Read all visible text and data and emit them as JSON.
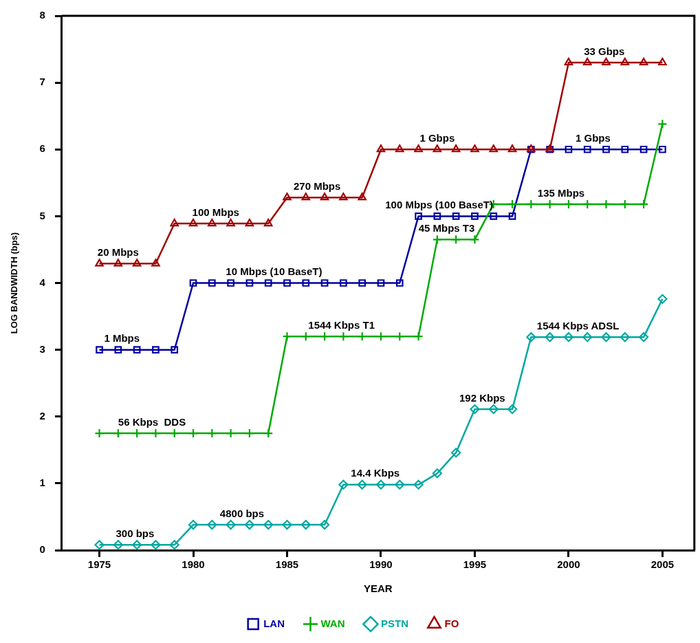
{
  "chart_data": {
    "type": "line",
    "xlabel": "YEAR",
    "ylabel": "LOG BANDWIDTH (bps)",
    "x": [
      1975,
      1976,
      1977,
      1978,
      1979,
      1980,
      1981,
      1982,
      1983,
      1984,
      1985,
      1986,
      1987,
      1988,
      1989,
      1990,
      1991,
      1992,
      1993,
      1994,
      1995,
      1996,
      1997,
      1998,
      1999,
      2000,
      2001,
      2002,
      2003,
      2004,
      2005
    ],
    "xlim": [
      1973,
      2006.7
    ],
    "xticks": [
      1975,
      1980,
      1985,
      1990,
      1995,
      2000,
      2005
    ],
    "ylim": [
      0,
      8
    ],
    "yticks": [
      0,
      1,
      2,
      3,
      4,
      5,
      6,
      7,
      8
    ],
    "grid": false,
    "legend": "bottom",
    "series": [
      {
        "name": "LAN",
        "color": "#0000a0",
        "marker": "square",
        "values": [
          3,
          3,
          3,
          3,
          3,
          4,
          4,
          4,
          4,
          4,
          4,
          4,
          4,
          4,
          4,
          4,
          4,
          5,
          5,
          5,
          5,
          5,
          5,
          6,
          6,
          6,
          6,
          6,
          6,
          6,
          6
        ]
      },
      {
        "name": "WAN",
        "color": "#00aa00",
        "marker": "cross",
        "values": [
          1.75,
          1.75,
          1.75,
          1.75,
          1.75,
          1.75,
          1.75,
          1.75,
          1.75,
          1.75,
          3.2,
          3.2,
          3.2,
          3.2,
          3.2,
          3.2,
          3.2,
          3.2,
          4.65,
          4.65,
          4.65,
          5.18,
          5.18,
          5.18,
          5.18,
          5.18,
          5.18,
          5.18,
          5.18,
          5.18,
          6.38
        ]
      },
      {
        "name": "PSTN",
        "color": "#00a8a0",
        "marker": "diamond",
        "values": [
          0.08,
          0.08,
          0.08,
          0.08,
          0.08,
          0.38,
          0.38,
          0.38,
          0.38,
          0.38,
          0.38,
          0.38,
          0.38,
          0.98,
          0.98,
          0.98,
          0.98,
          0.98,
          1.15,
          1.46,
          2.11,
          2.11,
          2.11,
          3.19,
          3.19,
          3.19,
          3.19,
          3.19,
          3.19,
          3.19,
          3.76
        ]
      },
      {
        "name": "FO",
        "color": "#a00000",
        "marker": "triangle",
        "values": [
          4.29,
          4.29,
          4.29,
          4.29,
          4.89,
          4.89,
          4.89,
          4.89,
          4.89,
          4.89,
          5.28,
          5.28,
          5.28,
          5.28,
          5.28,
          6,
          6,
          6,
          6,
          6,
          6,
          6,
          6,
          6,
          6,
          7.3,
          7.3,
          7.3,
          7.3,
          7.3,
          7.3
        ]
      }
    ],
    "annotations": [
      {
        "text": "20 Mbps",
        "x": 1976,
        "y": 4.29
      },
      {
        "text": "100 Mbps",
        "x": 1981.2,
        "y": 4.89
      },
      {
        "text": "270 Mbps",
        "x": 1986.6,
        "y": 5.28
      },
      {
        "text": "1 Gbps",
        "x": 1993,
        "y": 6
      },
      {
        "text": "33 Gbps",
        "x": 2001.9,
        "y": 7.3
      },
      {
        "text": "1 Gbps",
        "x": 2001.3,
        "y": 6
      },
      {
        "text": "10 Mbps (10 BaseT)",
        "x": 1984.3,
        "y": 4
      },
      {
        "text": "1 Mbps",
        "x": 1976.2,
        "y": 3
      },
      {
        "text": "100 Mbps (100 BaseT)",
        "x": 1993.1,
        "y": 5
      },
      {
        "text": "45 Mbps T3",
        "x": 1993.5,
        "y": 4.65
      },
      {
        "text": "135 Mbps",
        "x": 1999.6,
        "y": 5.18
      },
      {
        "text": "1544 Kbps T1",
        "x": 1987.9,
        "y": 3.2
      },
      {
        "text": "56 Kbps  DDS",
        "x": 1977.8,
        "y": 1.75
      },
      {
        "text": "300 bps",
        "x": 1976.9,
        "y": 0.08
      },
      {
        "text": "4800 bps",
        "x": 1982.6,
        "y": 0.38
      },
      {
        "text": "14.4 Kbps",
        "x": 1989.7,
        "y": 0.98
      },
      {
        "text": "192 Kbps",
        "x": 1995.4,
        "y": 2.11
      },
      {
        "text": "1544 Kbps ADSL",
        "x": 2000.5,
        "y": 3.19
      }
    ]
  }
}
